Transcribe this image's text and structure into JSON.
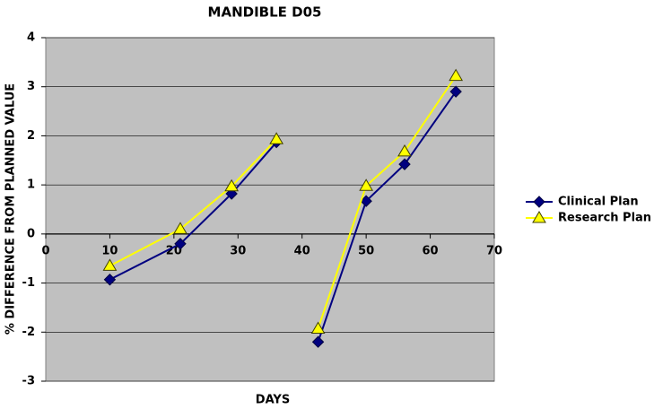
{
  "chart_data": {
    "type": "line",
    "title": "MANDIBLE D05",
    "x_label": "DAYS",
    "y_label": "% DIFFERENCE FROM PLANNED VALUE",
    "x": [
      10,
      21,
      29,
      36,
      null,
      42.5,
      50,
      56,
      64
    ],
    "series": [
      {
        "name": "Clinical Plan",
        "color": "#000080",
        "marker": "diamond",
        "values": [
          -0.93,
          -0.2,
          0.82,
          1.87,
          null,
          -2.2,
          0.67,
          1.42,
          2.9
        ]
      },
      {
        "name": "Research Plan",
        "color": "#ffff00",
        "marker": "triangle",
        "values": [
          -0.65,
          0.1,
          0.97,
          1.93,
          null,
          -1.93,
          0.98,
          1.68,
          3.22
        ]
      }
    ],
    "xlim": [
      0,
      70
    ],
    "xticks": [
      0,
      10,
      20,
      30,
      40,
      50,
      60,
      70
    ],
    "ylim": [
      -3,
      4
    ],
    "yticks": [
      -3,
      -2,
      -1,
      0,
      1,
      2,
      3,
      4
    ],
    "grid": true,
    "legend": "right"
  }
}
